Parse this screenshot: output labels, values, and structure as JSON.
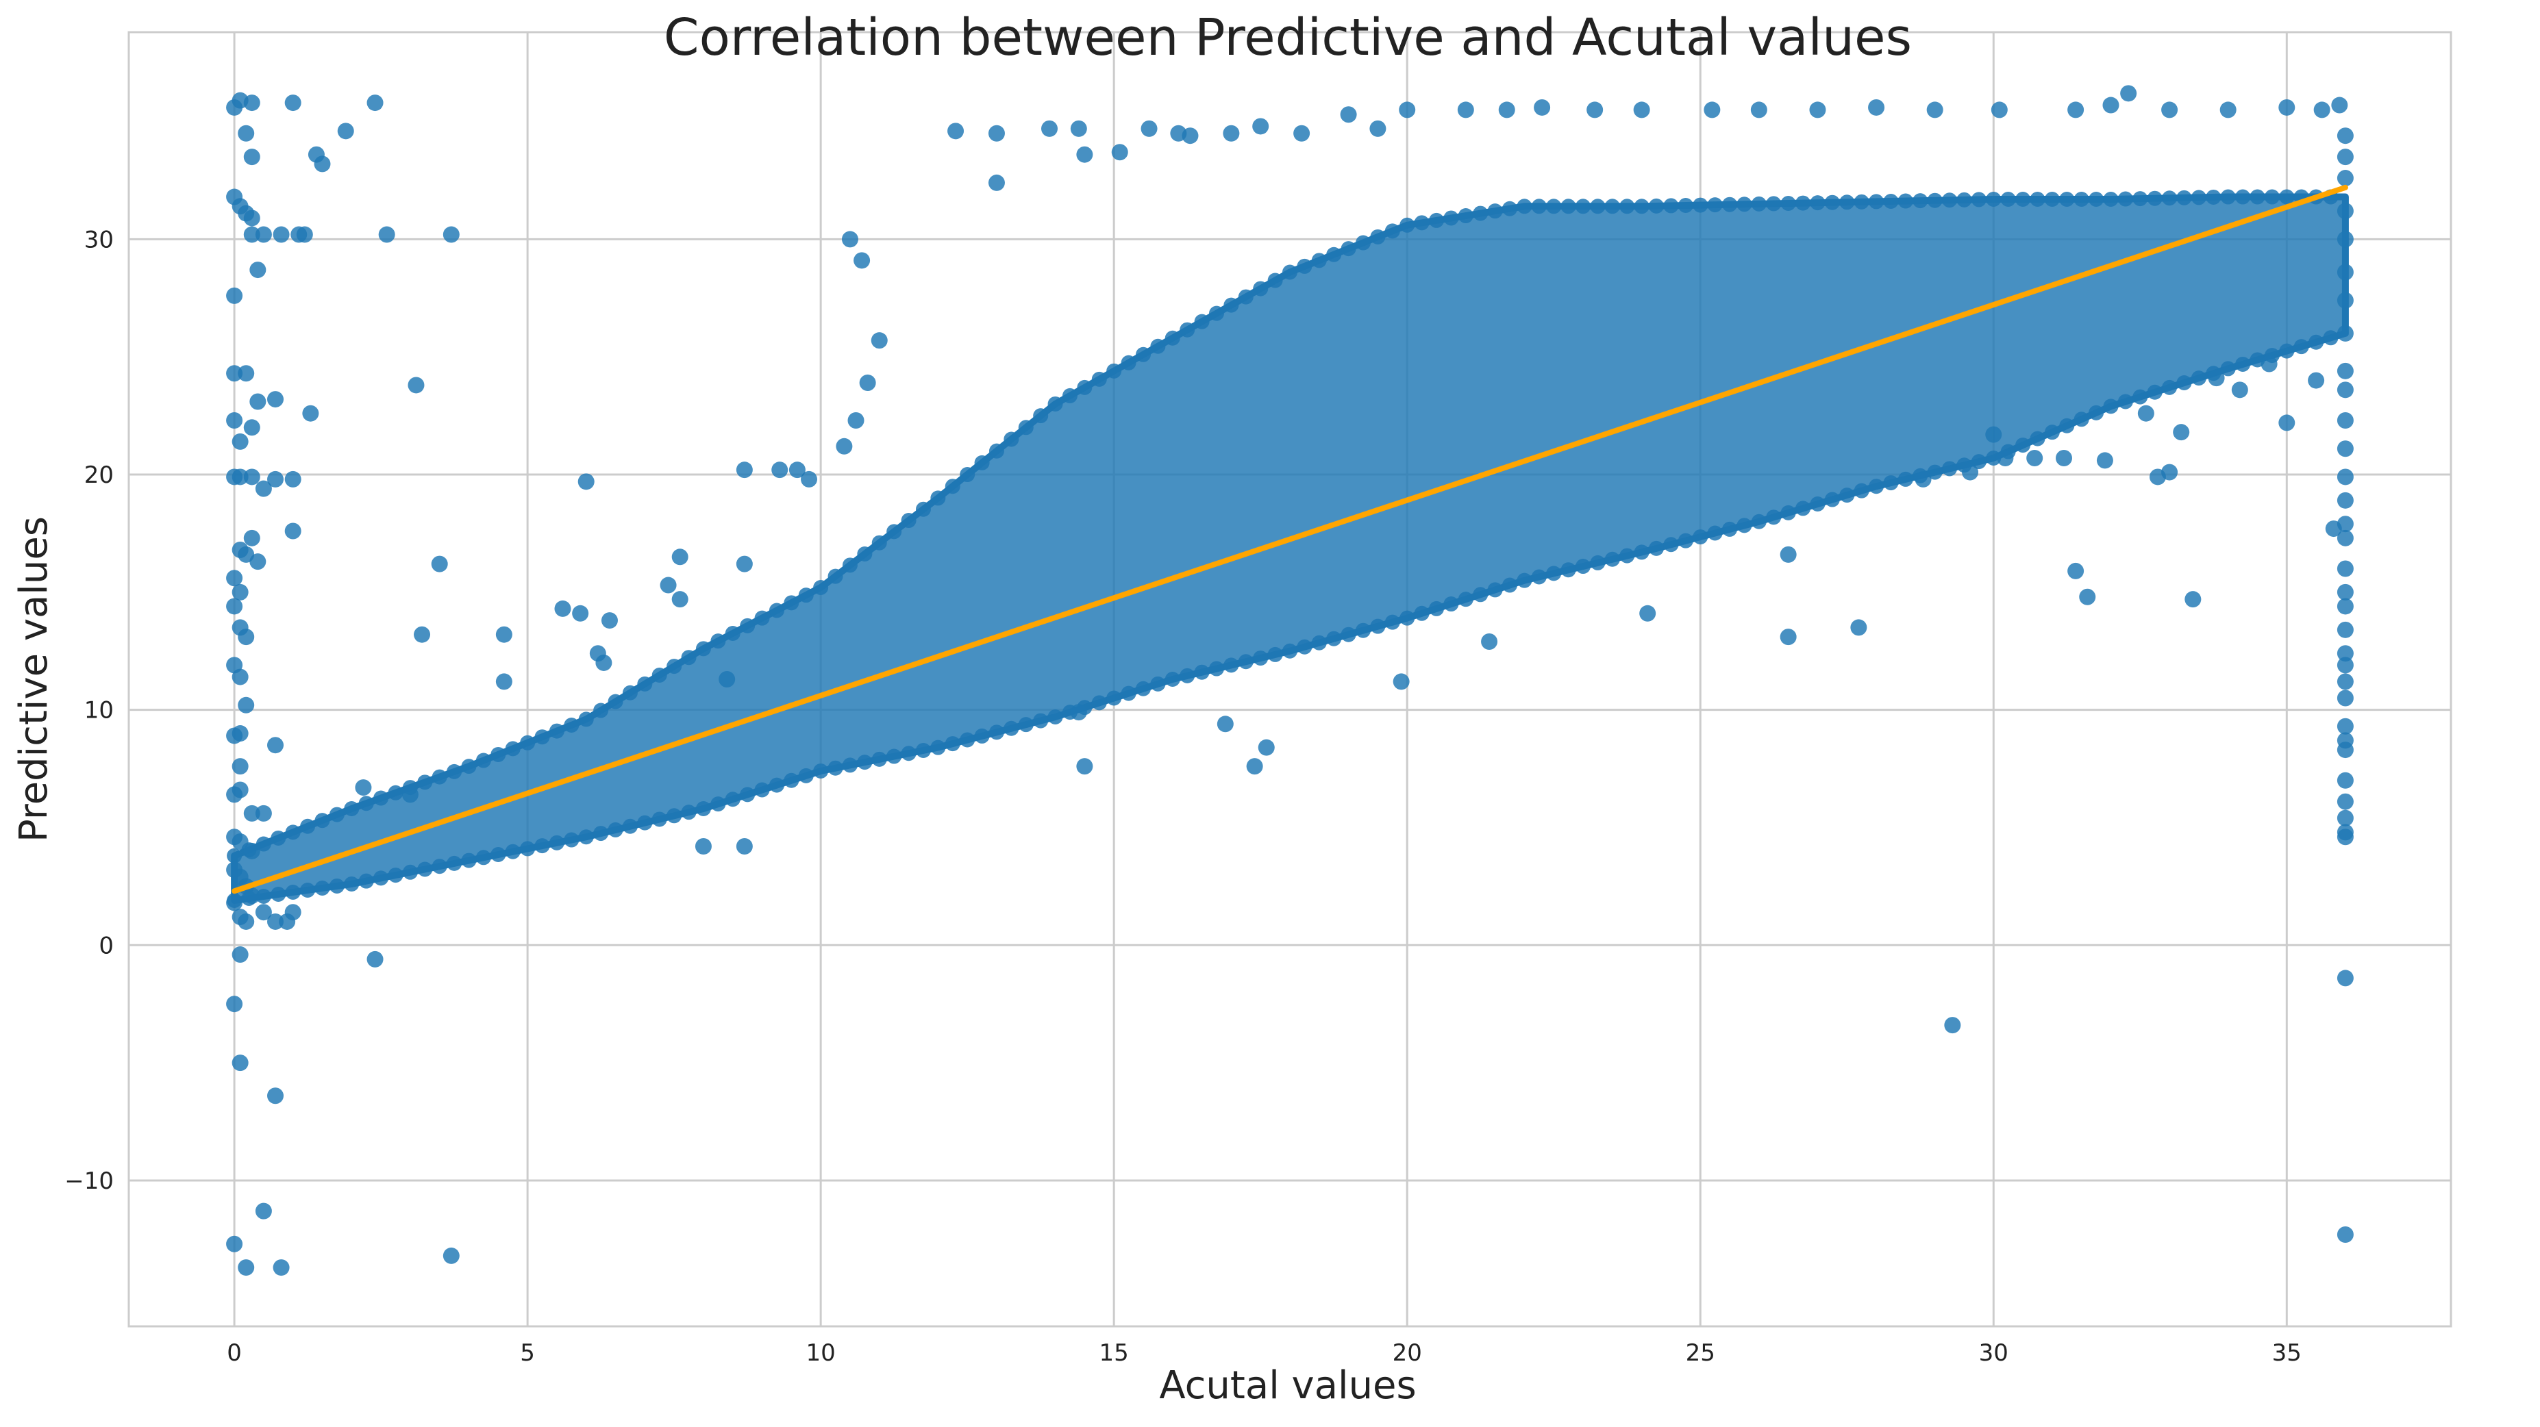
{
  "chart_data": {
    "type": "scatter",
    "title": "Correlation between Predictive and Acutal values",
    "xlabel": "Acutal values",
    "ylabel": "Predictive values",
    "xlim": [
      -1.8,
      37.8
    ],
    "ylim": [
      -16.2,
      38.8
    ],
    "xticks": [
      0,
      5,
      10,
      15,
      20,
      25,
      30,
      35
    ],
    "yticks": [
      -10,
      0,
      10,
      20,
      30
    ],
    "grid": true,
    "legend": "none",
    "colors": {
      "points": "#1f77b4",
      "regression": "#ffa500",
      "grid": "#cccccc"
    },
    "series": [
      {
        "kind": "scatter",
        "points": [
          [
            0.0,
            35.6
          ],
          [
            0.1,
            35.9
          ],
          [
            0.3,
            35.8
          ],
          [
            1.0,
            35.8
          ],
          [
            2.4,
            35.8
          ],
          [
            1.9,
            34.6
          ],
          [
            0.2,
            34.5
          ],
          [
            0.3,
            33.5
          ],
          [
            1.4,
            33.6
          ],
          [
            1.5,
            33.2
          ],
          [
            0.0,
            31.8
          ],
          [
            0.1,
            31.4
          ],
          [
            0.2,
            31.1
          ],
          [
            0.3,
            30.9
          ],
          [
            0.3,
            30.2
          ],
          [
            0.5,
            30.2
          ],
          [
            0.8,
            30.2
          ],
          [
            1.1,
            30.2
          ],
          [
            1.2,
            30.2
          ],
          [
            2.6,
            30.2
          ],
          [
            3.7,
            30.2
          ],
          [
            0.4,
            28.7
          ],
          [
            0.0,
            27.6
          ],
          [
            0.0,
            24.3
          ],
          [
            0.2,
            24.3
          ],
          [
            3.1,
            23.8
          ],
          [
            0.4,
            23.1
          ],
          [
            0.7,
            23.2
          ],
          [
            1.3,
            22.6
          ],
          [
            0.0,
            22.3
          ],
          [
            0.3,
            22.0
          ],
          [
            0.1,
            21.4
          ],
          [
            0.0,
            19.9
          ],
          [
            0.1,
            19.9
          ],
          [
            0.3,
            19.9
          ],
          [
            0.5,
            19.4
          ],
          [
            1.0,
            19.8
          ],
          [
            0.7,
            19.8
          ],
          [
            6.0,
            19.7
          ],
          [
            0.1,
            16.8
          ],
          [
            0.2,
            16.6
          ],
          [
            0.3,
            17.3
          ],
          [
            0.4,
            16.3
          ],
          [
            1.0,
            17.6
          ],
          [
            0.0,
            15.6
          ],
          [
            0.1,
            15.0
          ],
          [
            0.0,
            14.4
          ],
          [
            0.1,
            13.5
          ],
          [
            0.2,
            13.1
          ],
          [
            3.5,
            16.2
          ],
          [
            3.2,
            13.2
          ],
          [
            0.0,
            11.9
          ],
          [
            0.1,
            11.4
          ],
          [
            0.2,
            10.2
          ],
          [
            0.0,
            8.9
          ],
          [
            0.1,
            9.0
          ],
          [
            0.7,
            8.5
          ],
          [
            0.1,
            7.6
          ],
          [
            0.1,
            6.6
          ],
          [
            0.0,
            6.4
          ],
          [
            0.3,
            5.6
          ],
          [
            0.5,
            5.6
          ],
          [
            0.0,
            4.6
          ],
          [
            0.1,
            4.4
          ],
          [
            0.3,
            4.0
          ],
          [
            -0.0,
            3.2
          ],
          [
            0.1,
            2.9
          ],
          [
            0.2,
            2.5
          ],
          [
            0.0,
            1.8
          ],
          [
            0.1,
            1.2
          ],
          [
            0.2,
            1.0
          ],
          [
            0.3,
            2.1
          ],
          [
            0.5,
            1.4
          ],
          [
            0.7,
            1.0
          ],
          [
            0.9,
            1.0
          ],
          [
            1.0,
            1.4
          ],
          [
            0.1,
            -0.4
          ],
          [
            2.4,
            -0.6
          ],
          [
            0.0,
            -2.5
          ],
          [
            0.1,
            -5.0
          ],
          [
            0.7,
            -6.4
          ],
          [
            0.5,
            -11.3
          ],
          [
            0.0,
            -12.7
          ],
          [
            0.2,
            -13.7
          ],
          [
            0.8,
            -13.7
          ],
          [
            3.7,
            -13.2
          ],
          [
            2.2,
            6.7
          ],
          [
            3.0,
            6.4
          ],
          [
            4.6,
            11.2
          ],
          [
            4.6,
            13.2
          ],
          [
            5.6,
            14.3
          ],
          [
            5.9,
            14.1
          ],
          [
            6.2,
            12.4
          ],
          [
            6.3,
            12.0
          ],
          [
            6.4,
            13.8
          ],
          [
            7.4,
            15.3
          ],
          [
            7.6,
            14.7
          ],
          [
            7.6,
            16.5
          ],
          [
            8.0,
            4.2
          ],
          [
            8.7,
            4.2
          ],
          [
            8.4,
            11.3
          ],
          [
            8.7,
            16.2
          ],
          [
            8.7,
            20.2
          ],
          [
            9.3,
            20.2
          ],
          [
            9.6,
            20.2
          ],
          [
            9.8,
            19.8
          ],
          [
            10.4,
            21.2
          ],
          [
            10.6,
            22.3
          ],
          [
            10.8,
            23.9
          ],
          [
            11.0,
            25.7
          ],
          [
            10.5,
            30.0
          ],
          [
            10.7,
            29.1
          ],
          [
            12.3,
            34.6
          ],
          [
            13.0,
            34.5
          ],
          [
            13.0,
            32.4
          ],
          [
            14.4,
            34.7
          ],
          [
            13.9,
            34.7
          ],
          [
            14.5,
            33.6
          ],
          [
            15.1,
            33.7
          ],
          [
            15.6,
            34.7
          ],
          [
            16.1,
            34.5
          ],
          [
            16.3,
            34.4
          ],
          [
            17.0,
            34.5
          ],
          [
            17.5,
            34.8
          ],
          [
            18.2,
            34.5
          ],
          [
            19.0,
            35.3
          ],
          [
            19.5,
            34.7
          ],
          [
            20.0,
            35.5
          ],
          [
            21.0,
            35.5
          ],
          [
            21.7,
            35.5
          ],
          [
            22.3,
            35.6
          ],
          [
            23.2,
            35.5
          ],
          [
            24.0,
            35.5
          ],
          [
            25.2,
            35.5
          ],
          [
            26.0,
            35.5
          ],
          [
            27.0,
            35.5
          ],
          [
            28.0,
            35.6
          ],
          [
            29.0,
            35.5
          ],
          [
            30.1,
            35.5
          ],
          [
            31.4,
            35.5
          ],
          [
            32.0,
            35.7
          ],
          [
            32.3,
            36.2
          ],
          [
            33.0,
            35.5
          ],
          [
            34.0,
            35.5
          ],
          [
            35.0,
            35.6
          ],
          [
            35.6,
            35.5
          ],
          [
            35.9,
            35.7
          ],
          [
            14.5,
            7.6
          ],
          [
            14.4,
            9.9
          ],
          [
            16.9,
            9.4
          ],
          [
            17.4,
            7.6
          ],
          [
            17.6,
            8.4
          ],
          [
            19.9,
            11.2
          ],
          [
            21.4,
            12.9
          ],
          [
            24.1,
            14.1
          ],
          [
            26.5,
            16.6
          ],
          [
            26.5,
            13.1
          ],
          [
            27.7,
            13.5
          ],
          [
            31.4,
            15.9
          ],
          [
            31.6,
            14.8
          ],
          [
            33.4,
            14.7
          ],
          [
            35.0,
            22.2
          ],
          [
            35.8,
            17.7
          ],
          [
            29.3,
            -3.4
          ],
          [
            36.0,
            -1.4
          ],
          [
            36.0,
            -12.3
          ],
          [
            36.0,
            4.6
          ],
          [
            36.0,
            4.8
          ],
          [
            36.0,
            5.4
          ],
          [
            36.0,
            6.1
          ],
          [
            36.0,
            7.0
          ],
          [
            36.0,
            8.3
          ],
          [
            36.0,
            8.7
          ],
          [
            36.0,
            9.3
          ],
          [
            36.0,
            10.5
          ],
          [
            36.0,
            11.2
          ],
          [
            36.0,
            11.9
          ],
          [
            36.0,
            12.4
          ],
          [
            36.0,
            13.4
          ],
          [
            36.0,
            14.4
          ],
          [
            36.0,
            15.0
          ],
          [
            36.0,
            16.0
          ],
          [
            36.0,
            17.3
          ],
          [
            36.0,
            17.9
          ],
          [
            36.0,
            18.9
          ],
          [
            36.0,
            19.9
          ],
          [
            36.0,
            21.1
          ],
          [
            36.0,
            22.3
          ],
          [
            36.0,
            23.6
          ],
          [
            36.0,
            24.4
          ],
          [
            36.0,
            26.0
          ],
          [
            36.0,
            27.4
          ],
          [
            36.0,
            28.6
          ],
          [
            36.0,
            30.0
          ],
          [
            36.0,
            31.2
          ],
          [
            36.0,
            32.6
          ],
          [
            36.0,
            33.5
          ],
          [
            36.0,
            34.4
          ],
          [
            30.2,
            20.7
          ],
          [
            30.7,
            20.7
          ],
          [
            31.2,
            20.7
          ],
          [
            31.9,
            20.6
          ],
          [
            32.8,
            19.9
          ],
          [
            33.0,
            20.1
          ],
          [
            29.6,
            20.1
          ],
          [
            28.8,
            19.8
          ],
          [
            30.0,
            21.7
          ],
          [
            33.2,
            21.8
          ],
          [
            34.2,
            23.6
          ],
          [
            34.7,
            24.7
          ],
          [
            35.5,
            24.0
          ],
          [
            32.6,
            22.6
          ],
          [
            33.8,
            24.1
          ]
        ]
      },
      {
        "kind": "regression-line",
        "x": [
          0,
          36
        ],
        "y": [
          2.3,
          32.2
        ]
      },
      {
        "kind": "dense-band",
        "x": [
          0.0,
          2.0,
          4.0,
          6.0,
          8.0,
          10.0,
          12.0,
          14.0,
          16.0,
          18.0,
          20.0,
          22.0,
          24.0,
          26.0,
          28.0,
          30.0,
          32.0,
          34.0,
          36.0
        ],
        "y_low": [
          1.9,
          2.6,
          3.6,
          4.6,
          5.8,
          7.4,
          8.4,
          9.7,
          11.3,
          12.5,
          13.9,
          15.5,
          16.7,
          18.0,
          19.5,
          20.7,
          22.9,
          24.5,
          26.0
        ],
        "y_high": [
          3.8,
          5.8,
          7.6,
          9.6,
          12.6,
          15.2,
          19.0,
          23.0,
          25.8,
          28.6,
          30.6,
          31.4,
          31.4,
          31.5,
          31.6,
          31.7,
          31.7,
          31.8,
          31.8
        ]
      }
    ]
  }
}
